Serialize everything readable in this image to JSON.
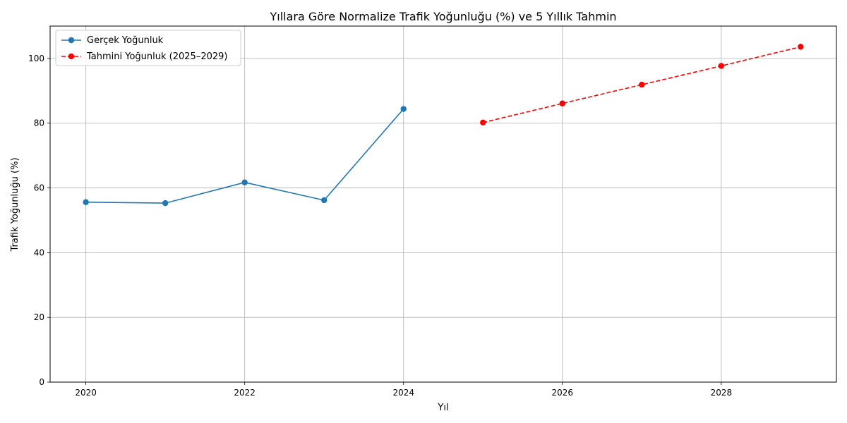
{
  "chart_data": {
    "type": "line",
    "title": "Yıllara Göre Normalize Trafik Yoğunluğu (%) ve 5 Yıllık Tahmin",
    "xlabel": "Yıl",
    "ylabel": "Trafik Yoğunluğu (%)",
    "xlim": [
      2019.55,
      2029.45
    ],
    "ylim": [
      0,
      110
    ],
    "xticks": [
      2020,
      2022,
      2024,
      2026,
      2028
    ],
    "yticks": [
      0,
      20,
      40,
      60,
      80,
      100
    ],
    "grid": true,
    "legend_position": "top-left",
    "series": [
      {
        "name": "Gerçek Yoğunluk",
        "color": "#1f77b4",
        "line_style": "solid",
        "marker": "circle",
        "x": [
          2020,
          2021,
          2022,
          2023,
          2024
        ],
        "y": [
          55.6,
          55.3,
          61.7,
          56.2,
          84.4
        ]
      },
      {
        "name": "Tahmini Yoğunluk (2025–2029)",
        "color": "#ff0000",
        "line_style": "dashed",
        "marker": "circle",
        "x": [
          2025,
          2026,
          2027,
          2028,
          2029
        ],
        "y": [
          80.2,
          86.1,
          91.9,
          97.7,
          103.6
        ]
      }
    ]
  }
}
